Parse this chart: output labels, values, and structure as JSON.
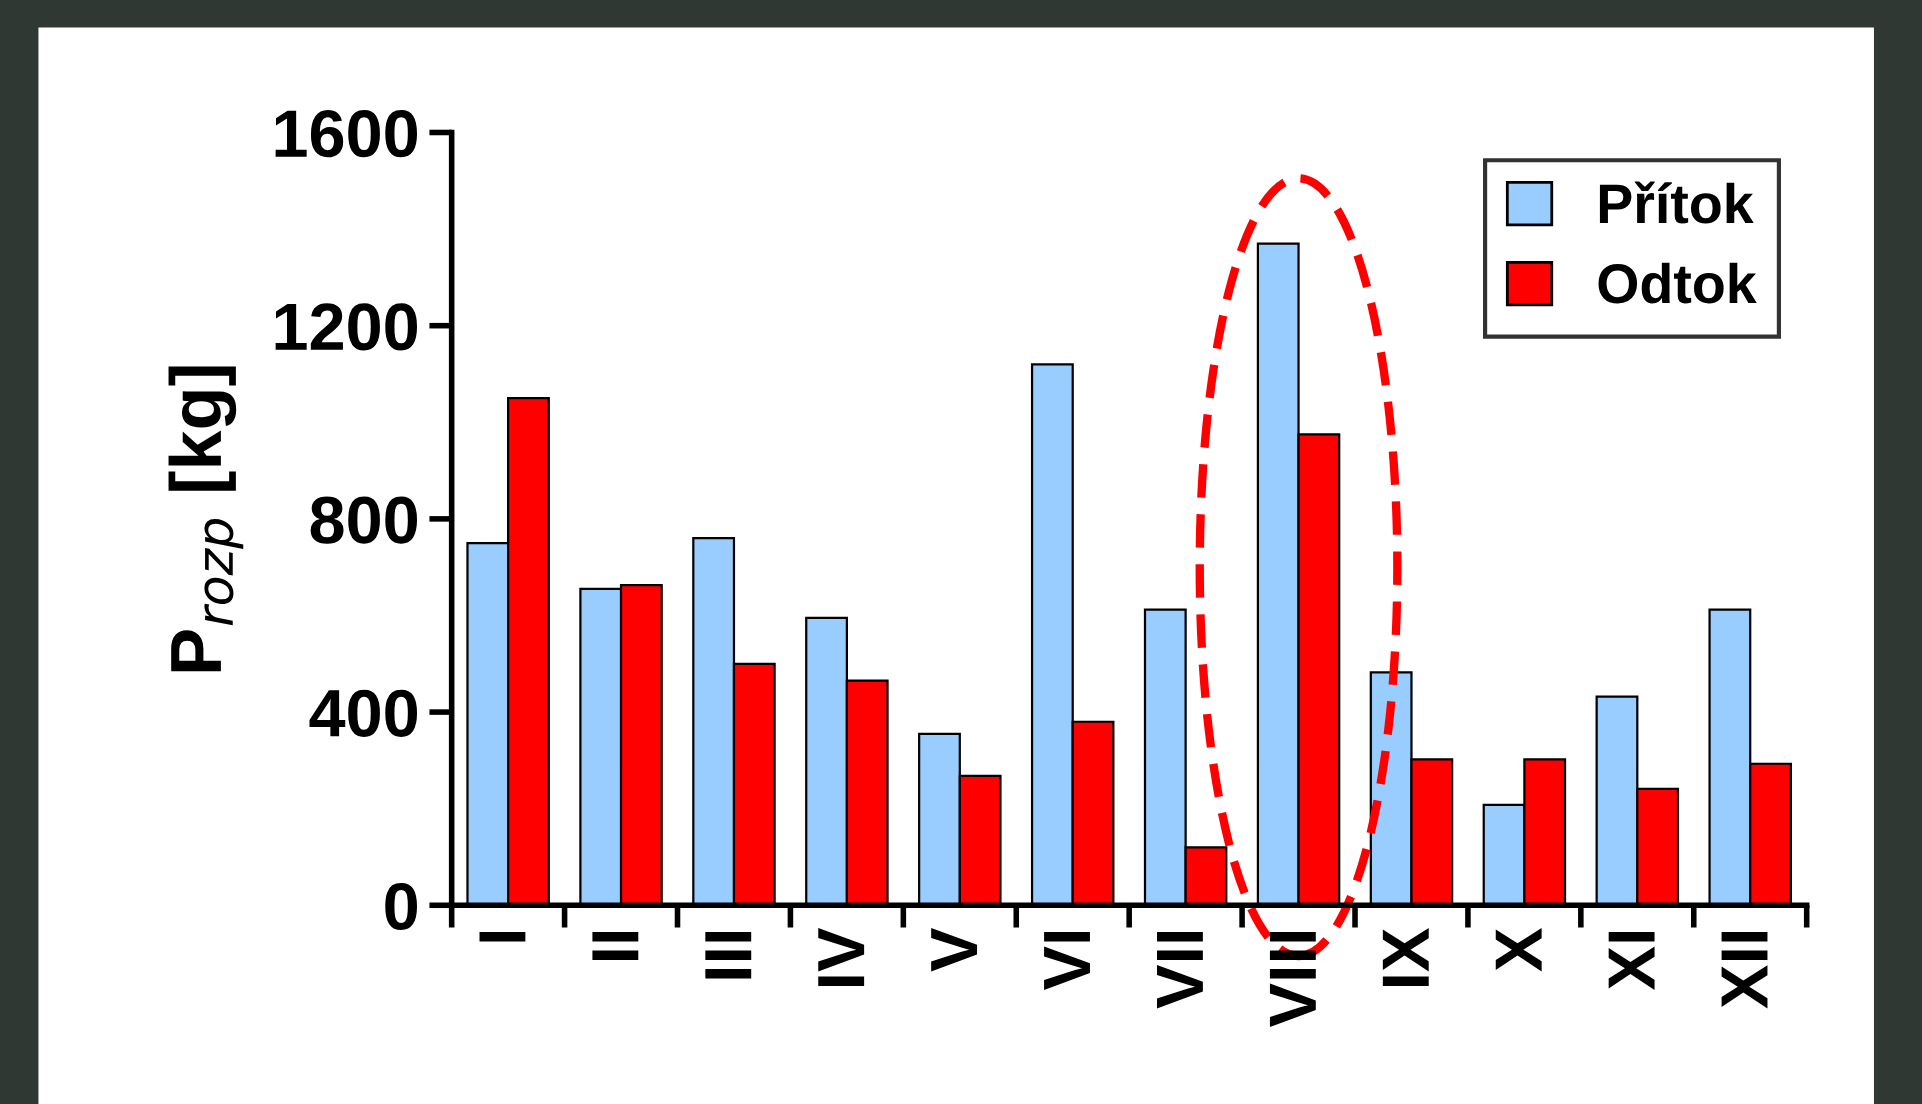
{
  "chart_data": {
    "type": "bar",
    "ylabel": "P$_{rozp}$ [kg]",
    "categories": [
      "I",
      "II",
      "III",
      "IV",
      "V",
      "VI",
      "VII",
      "VIII",
      "IX",
      "X",
      "XI",
      "XII"
    ],
    "series": [
      {
        "name": "Přítok",
        "color": "#99ccff",
        "values": [
          750,
          655,
          760,
          595,
          355,
          1120,
          612,
          1370,
          482,
          208,
          432,
          612
        ]
      },
      {
        "name": "Odtok",
        "color": "#ff0000",
        "values": [
          1050,
          663,
          500,
          465,
          268,
          380,
          120,
          975,
          302,
          302,
          241,
          293
        ]
      }
    ],
    "ylim": [
      0,
      1600
    ],
    "yticks": [
      0,
      400,
      800,
      1200,
      1600
    ],
    "grid": false,
    "legend": "top right"
  }
}
